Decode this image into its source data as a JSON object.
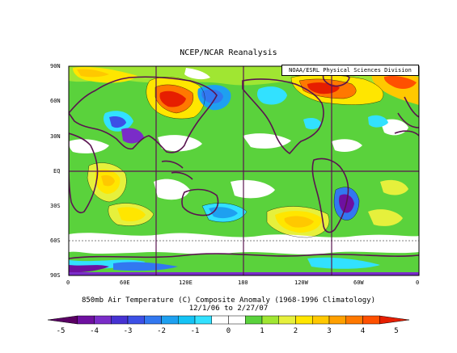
{
  "figure": {
    "title": "NCEP/NCAR Reanalysis",
    "credit": "NOAA/ESRL Physical Sciences Division",
    "caption_line1": "850mb Air Temperature (C) Composite Anomaly (1968-1996 Climatology)",
    "caption_line2": "12/1/06 to 2/27/07"
  },
  "map": {
    "lat_labels": [
      "90N",
      "60N",
      "30N",
      "EQ",
      "30S",
      "60S",
      "90S"
    ],
    "lon_labels": [
      "0",
      "60E",
      "120E",
      "180",
      "120W",
      "60W",
      "0"
    ]
  },
  "colorbar": {
    "tick_labels": [
      "-5",
      "-4",
      "-3",
      "-2",
      "-1",
      "0",
      "1",
      "2",
      "3",
      "4",
      "5"
    ],
    "bins": [
      {
        "min": -5,
        "max": -4.5,
        "color": "#5a0064"
      },
      {
        "min": -4.5,
        "max": -4,
        "color": "#6e10a0"
      },
      {
        "min": -4,
        "max": -3.5,
        "color": "#7a2cc8"
      },
      {
        "min": -3.5,
        "max": -3,
        "color": "#4632d2"
      },
      {
        "min": -3,
        "max": -2.5,
        "color": "#3c50e6"
      },
      {
        "min": -2.5,
        "max": -2,
        "color": "#3278f0"
      },
      {
        "min": -2,
        "max": -1.5,
        "color": "#1ea0f0"
      },
      {
        "min": -1.5,
        "max": -1,
        "color": "#14c3f5"
      },
      {
        "min": -1,
        "max": -0.5,
        "color": "#32e1ff"
      },
      {
        "min": -0.5,
        "max": 0,
        "color": "#ffffff"
      },
      {
        "min": 0,
        "max": 0.5,
        "color": "#ffffff"
      },
      {
        "min": 0.5,
        "max": 1,
        "color": "#5ad23c"
      },
      {
        "min": 1,
        "max": 1.5,
        "color": "#a0e632"
      },
      {
        "min": 1.5,
        "max": 2,
        "color": "#e6f03c"
      },
      {
        "min": 2,
        "max": 2.5,
        "color": "#ffe600"
      },
      {
        "min": 2.5,
        "max": 3,
        "color": "#ffc800"
      },
      {
        "min": 3,
        "max": 3.5,
        "color": "#ffa000"
      },
      {
        "min": 3.5,
        "max": 4,
        "color": "#ff7800"
      },
      {
        "min": 4,
        "max": 4.5,
        "color": "#ff5000"
      },
      {
        "min": 4.5,
        "max": 5,
        "color": "#e61e00"
      }
    ]
  },
  "colors": {
    "land_outline": "#5a1450",
    "grid_line": "#5a1450",
    "background_field": "#5ad23c"
  }
}
